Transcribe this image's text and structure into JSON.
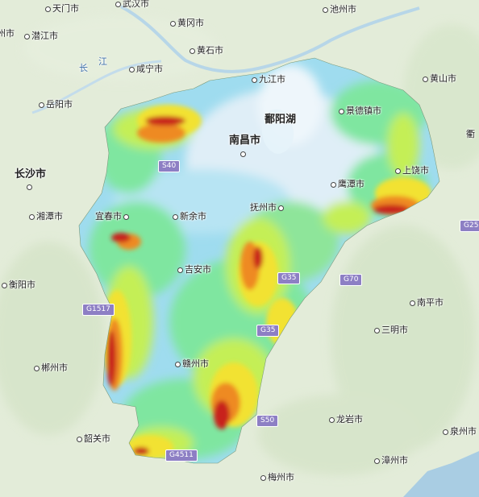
{
  "map": {
    "cities": {
      "wuhan": "武汉市",
      "tianmen": "天门市",
      "qianjiang": "潜江市",
      "huanggang": "黄冈市",
      "huangshi": "黄石市",
      "xianning": "咸宁市",
      "yueyang": "岳阳市",
      "changsha": "长沙市",
      "xiangtan": "湘潭市",
      "hengyang": "衡阳市",
      "chenzhou": "郴州市",
      "shaoguan": "韶关市",
      "meizhou": "梅州市",
      "longyan": "龙岩市",
      "zhangzhou": "漳州市",
      "quanzhou": "泉州市",
      "sanming": "三明市",
      "nanping": "南平市",
      "shangrao": "上饶市",
      "yingtan": "鹰潭市",
      "jingdezhen": "景德镇市",
      "huangshan": "黄山市",
      "chizhou": "池州市",
      "jiujiang": "九江市",
      "nanchang": "南昌市",
      "fuzhou": "抚州市",
      "xinyu": "新余市",
      "yichun": "宜春市",
      "jian": "吉安市",
      "ganzhou": "赣州市"
    },
    "edge_labels": {
      "left": "州市",
      "right": "衢"
    },
    "water": {
      "poyang_lake": "鄱阳湖",
      "yangtze_1": "长",
      "yangtze_2": "江"
    },
    "highways": {
      "s40": "S40",
      "g35a": "G35",
      "g35b": "G35",
      "g70": "G70",
      "g25": "G25",
      "g1517": "G1517",
      "s50": "S50",
      "g4511": "G4511"
    },
    "colors": {
      "background": "#e3ecd9",
      "lowland": "#dfeef7",
      "plain": "#9fdcef",
      "hill": "#7fe6a0",
      "upland": "#c4ef56",
      "mountain": "#f2e232",
      "high": "#ee8a22",
      "peak": "#c8201a",
      "highway_shield": "#8d7fc4"
    }
  }
}
